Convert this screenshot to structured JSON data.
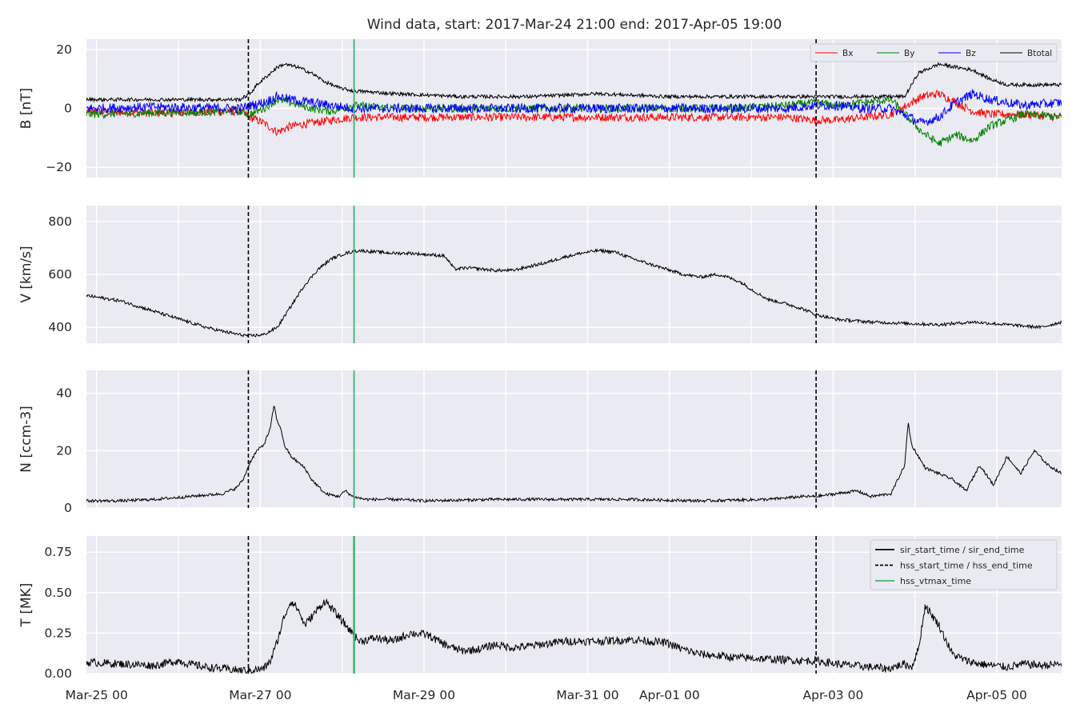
{
  "chart_data": {
    "type": "line",
    "title": "Wind data, start: 2017-Mar-24 21:00  end: 2017-Apr-05 19:00",
    "x_axis": {
      "unit": "hours since 2017-Mar-24 21:00",
      "range": [
        0,
        286
      ],
      "tick_labels": [
        {
          "label": "Mar-25 00",
          "x": 3
        },
        {
          "label": "Mar-27 00",
          "x": 51
        },
        {
          "label": "Mar-29 00",
          "x": 99
        },
        {
          "label": "Mar-31 00",
          "x": 147
        },
        {
          "label": "Apr-01 00",
          "x": 171
        },
        {
          "label": "Apr-03 00",
          "x": 219
        },
        {
          "label": "Apr-05 00",
          "x": 267
        }
      ],
      "minor_grid": [
        27,
        75,
        123,
        195,
        243
      ]
    },
    "grid": true,
    "events": {
      "hss_start": 47.5,
      "hss_end": 214.0,
      "hss_vtmax": 78.5
    },
    "panels": [
      {
        "id": "B",
        "ylabel": "B [nT]",
        "ylim": [
          -23.5,
          23.5
        ],
        "yticks": [
          {
            "v": 20,
            "label": "20"
          },
          {
            "v": 0,
            "label": "0"
          },
          {
            "v": -20,
            "label": "−20"
          }
        ],
        "legend": {
          "position": "top-right",
          "entries": [
            {
              "name": "Bx",
              "color": "#ff0000"
            },
            {
              "name": "By",
              "color": "#008000"
            },
            {
              "name": "Bz",
              "color": "#0000ff"
            },
            {
              "name": "Btotal",
              "color": "#000000"
            }
          ]
        },
        "series": [
          {
            "name": "Bx",
            "color": "#ff0000",
            "noise": 1.4,
            "x": [
              0,
              20,
              45,
              48,
              52,
              56,
              60,
              66,
              72,
              78,
              90,
              110,
              130,
              150,
              170,
              190,
              205,
              214,
              220,
              228,
              236,
              245,
              250,
              255,
              260,
              265,
              275,
              286
            ],
            "y": [
              -1,
              -1.5,
              -1,
              -3,
              -5,
              -8,
              -6,
              -5,
              -4,
              -3,
              -3,
              -3,
              -3,
              -3,
              -3,
              -3,
              -3,
              -4,
              -4,
              -3,
              -2,
              4,
              5,
              2,
              -1,
              -2,
              -2,
              -3
            ]
          },
          {
            "name": "By",
            "color": "#008000",
            "noise": 1.4,
            "x": [
              0,
              20,
              45,
              48,
              52,
              56,
              60,
              66,
              72,
              78,
              90,
              110,
              130,
              150,
              170,
              190,
              205,
              214,
              220,
              228,
              236,
              245,
              250,
              255,
              260,
              265,
              275,
              286
            ],
            "y": [
              -2,
              -1.5,
              -1,
              -2,
              0,
              3,
              2,
              0,
              -1,
              1,
              0,
              0,
              0,
              0,
              0,
              0,
              1,
              2,
              1,
              2,
              3,
              -8,
              -12,
              -9,
              -11,
              -6,
              -2,
              -3
            ]
          },
          {
            "name": "Bz",
            "color": "#0000ff",
            "noise": 1.6,
            "x": [
              0,
              20,
              45,
              48,
              52,
              56,
              60,
              66,
              72,
              78,
              90,
              110,
              130,
              150,
              170,
              190,
              205,
              214,
              220,
              228,
              236,
              245,
              250,
              255,
              260,
              265,
              275,
              286
            ],
            "y": [
              0,
              0.5,
              0,
              1,
              2,
              4,
              3,
              2,
              1,
              0,
              0,
              0,
              0,
              0,
              0,
              0,
              0,
              1,
              1,
              0,
              0,
              -5,
              -3,
              2,
              5,
              3,
              1,
              2
            ]
          },
          {
            "name": "Btotal",
            "color": "#000000",
            "noise": 0.6,
            "x": [
              0,
              20,
              45,
              48,
              50,
              54,
              56,
              58,
              62,
              66,
              70,
              74,
              78,
              90,
              110,
              130,
              150,
              170,
              190,
              205,
              214,
              220,
              228,
              236,
              240,
              244,
              250,
              255,
              260,
              265,
              270,
              286
            ],
            "y": [
              3,
              3,
              3,
              5,
              8,
              12,
              14,
              15,
              14,
              12,
              9,
              7,
              6,
              5,
              4,
              4,
              5,
              4,
              4,
              4,
              4,
              4,
              4,
              4,
              4,
              12,
              15,
              14,
              13,
              10,
              8,
              8
            ]
          }
        ]
      },
      {
        "id": "V",
        "ylabel": "V [km/s]",
        "ylim": [
          340,
          860
        ],
        "yticks": [
          {
            "v": 800,
            "label": "800"
          },
          {
            "v": 600,
            "label": "600"
          },
          {
            "v": 400,
            "label": "400"
          }
        ],
        "series": [
          {
            "name": "V",
            "color": "#000000",
            "noise": 6,
            "x": [
              0,
              5,
              10,
              15,
              20,
              25,
              30,
              35,
              40,
              45,
              48,
              52,
              56,
              60,
              64,
              68,
              72,
              76,
              80,
              85,
              90,
              95,
              100,
              105,
              108,
              112,
              120,
              125,
              130,
              135,
              140,
              145,
              150,
              155,
              160,
              165,
              170,
              175,
              180,
              185,
              188,
              192,
              196,
              200,
              205,
              210,
              214,
              220,
              230,
              240,
              250,
              260,
              270,
              280,
              286
            ],
            "y": [
              520,
              510,
              500,
              480,
              460,
              440,
              420,
              400,
              385,
              372,
              368,
              372,
              400,
              480,
              560,
              620,
              660,
              680,
              690,
              685,
              680,
              680,
              675,
              670,
              620,
              625,
              615,
              615,
              630,
              645,
              665,
              680,
              690,
              685,
              660,
              640,
              620,
              600,
              590,
              600,
              590,
              570,
              535,
              505,
              490,
              470,
              448,
              430,
              420,
              415,
              410,
              420,
              410,
              400,
              420
            ]
          }
        ]
      },
      {
        "id": "N",
        "ylabel": "N [ccm-3]",
        "ylim": [
          0,
          48
        ],
        "yticks": [
          {
            "v": 40,
            "label": "40"
          },
          {
            "v": 20,
            "label": "20"
          },
          {
            "v": 0,
            "label": "0"
          }
        ],
        "series": [
          {
            "name": "N",
            "color": "#000000",
            "noise": 0.5,
            "x": [
              0,
              10,
              20,
              30,
              40,
              44,
              46,
              48,
              50,
              52,
              54,
              55,
              56,
              57,
              58,
              60,
              62,
              64,
              66,
              70,
              74,
              76,
              78,
              82,
              90,
              100,
              120,
              140,
              160,
              180,
              200,
              210,
              214,
              220,
              226,
              230,
              236,
              240,
              241,
              242,
              244,
              246,
              250,
              254,
              258,
              262,
              266,
              270,
              274,
              278,
              282,
              286
            ],
            "y": [
              2.5,
              2.5,
              3,
              4,
              5,
              7,
              10,
              16,
              20,
              22,
              28,
              36,
              30,
              28,
              22,
              18,
              16,
              14,
              10,
              5,
              4,
              6,
              4,
              3,
              3,
              2.5,
              3,
              3,
              3,
              2.5,
              3,
              4,
              4,
              5,
              6,
              4,
              5,
              15,
              30,
              22,
              18,
              14,
              12,
              10,
              6,
              15,
              8,
              18,
              12,
              20,
              15,
              12
            ]
          }
        ]
      },
      {
        "id": "T",
        "ylabel": "T [MK]",
        "ylim": [
          0,
          0.85
        ],
        "yticks": [
          {
            "v": 0.75,
            "label": "0.75"
          },
          {
            "v": 0.5,
            "label": "0.50"
          },
          {
            "v": 0.25,
            "label": "0.25"
          },
          {
            "v": 0.0,
            "label": "0.00"
          }
        ],
        "legend": {
          "position": "top-right",
          "entries": [
            {
              "name": "sir_start_time / sir_end_time",
              "style": "solid",
              "color": "#000000"
            },
            {
              "name": "hss_start_time / hss_end_time",
              "style": "dashed",
              "color": "#000000"
            },
            {
              "name": "hss_vtmax_time",
              "style": "solid",
              "color": "#3cb371"
            }
          ]
        },
        "series": [
          {
            "name": "T",
            "color": "#000000",
            "noise": 0.025,
            "x": [
              0,
              10,
              20,
              27,
              30,
              35,
              40,
              45,
              48,
              52,
              54,
              56,
              58,
              60,
              62,
              64,
              66,
              70,
              72,
              74,
              76,
              78,
              80,
              85,
              90,
              95,
              100,
              105,
              110,
              115,
              120,
              125,
              130,
              140,
              150,
              160,
              170,
              175,
              180,
              190,
              200,
              210,
              214,
              220,
              225,
              230,
              235,
              240,
              242,
              244,
              246,
              250,
              254,
              258,
              262,
              266,
              270,
              275,
              280,
              286
            ],
            "y": [
              0.07,
              0.06,
              0.05,
              0.08,
              0.06,
              0.04,
              0.03,
              0.02,
              0.02,
              0.03,
              0.08,
              0.2,
              0.35,
              0.45,
              0.4,
              0.3,
              0.35,
              0.45,
              0.4,
              0.35,
              0.3,
              0.25,
              0.2,
              0.22,
              0.2,
              0.25,
              0.24,
              0.18,
              0.14,
              0.15,
              0.18,
              0.16,
              0.17,
              0.2,
              0.2,
              0.21,
              0.19,
              0.15,
              0.12,
              0.1,
              0.09,
              0.08,
              0.08,
              0.06,
              0.05,
              0.04,
              0.03,
              0.06,
              0.04,
              0.15,
              0.42,
              0.3,
              0.12,
              0.08,
              0.06,
              0.05,
              0.04,
              0.06,
              0.05,
              0.06
            ]
          }
        ]
      }
    ]
  }
}
